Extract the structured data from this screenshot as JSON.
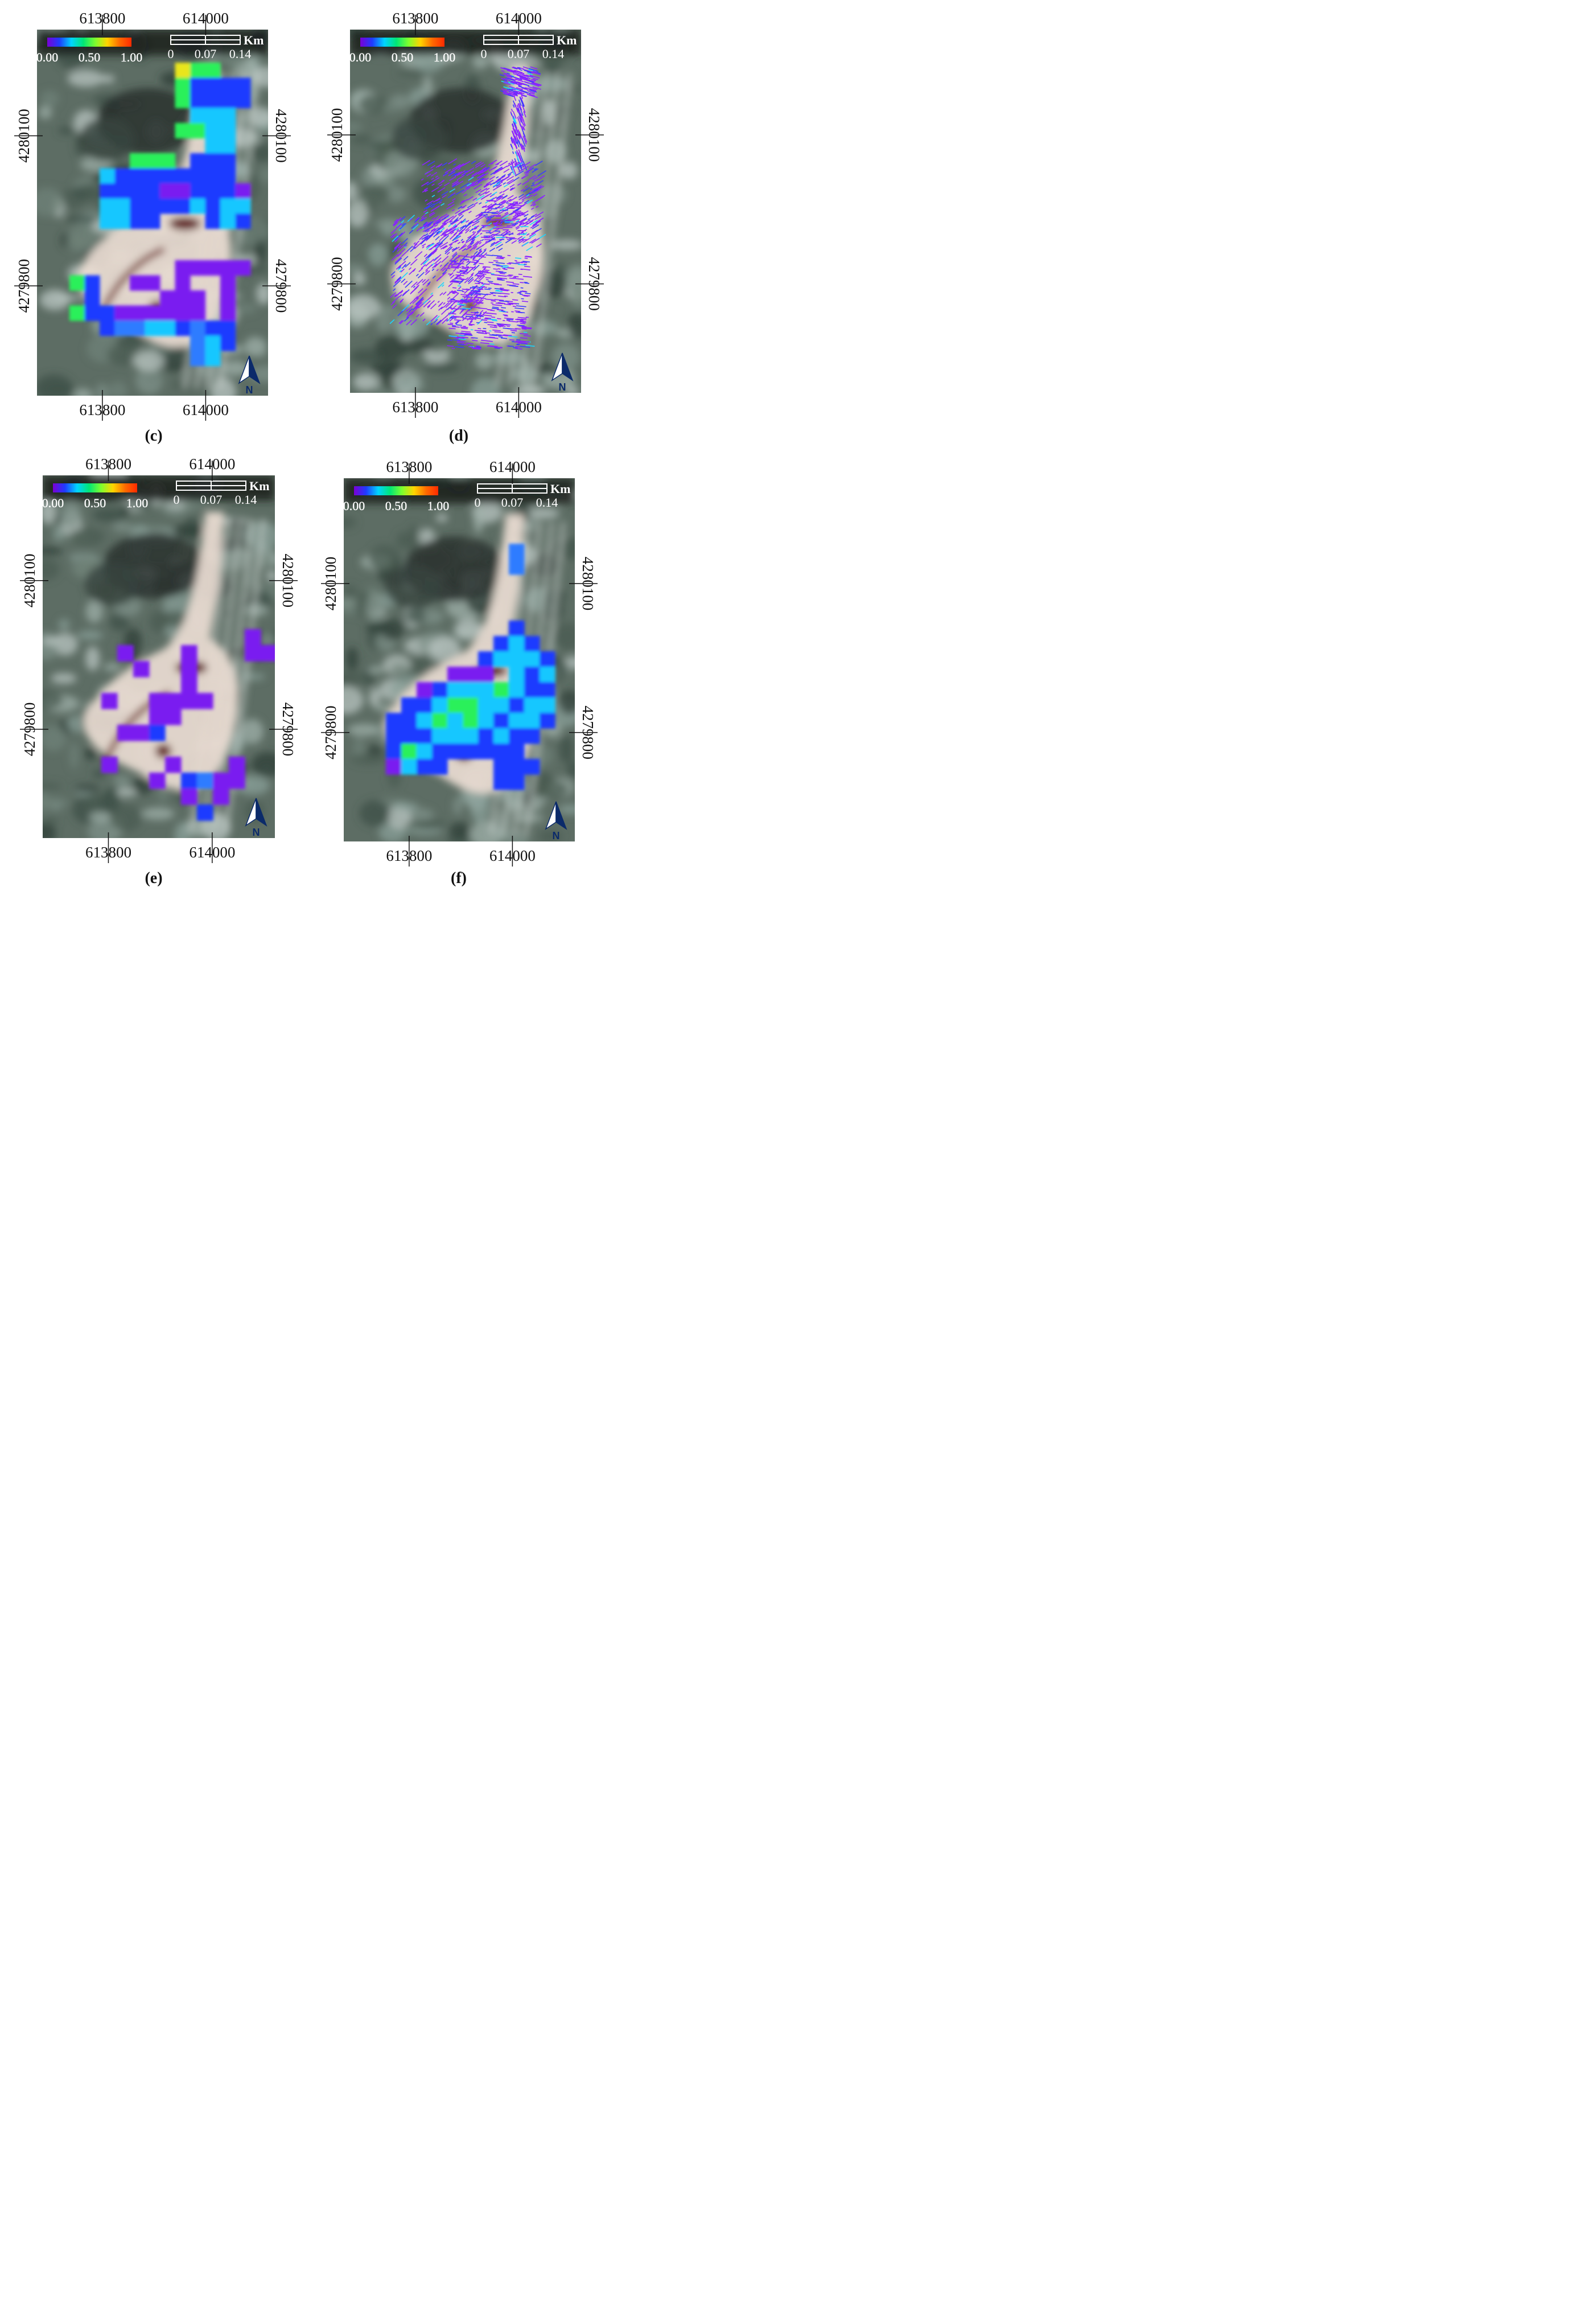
{
  "colorbar": {
    "ticks": [
      "0.00",
      "0.50",
      "1.00"
    ],
    "stops": [
      "#7a00d6",
      "#1f3bff",
      "#00d4ff",
      "#00e676",
      "#7dff2e",
      "#ffd400",
      "#ff6a00",
      "#ff2a00"
    ]
  },
  "scalebar": {
    "ticks": [
      "0",
      "0.07",
      "0.14"
    ],
    "unit": "Km"
  },
  "north_arrow": {
    "label": "N"
  },
  "coordinates": {
    "easting": [
      "613800",
      "614000"
    ],
    "northing": [
      "4280100",
      "4279800"
    ]
  },
  "panels": [
    {
      "id": "c",
      "caption": "(c)"
    },
    {
      "id": "d",
      "caption": "(d)"
    },
    {
      "id": "e",
      "caption": "(e)"
    },
    {
      "id": "f",
      "caption": "(f)"
    }
  ]
}
